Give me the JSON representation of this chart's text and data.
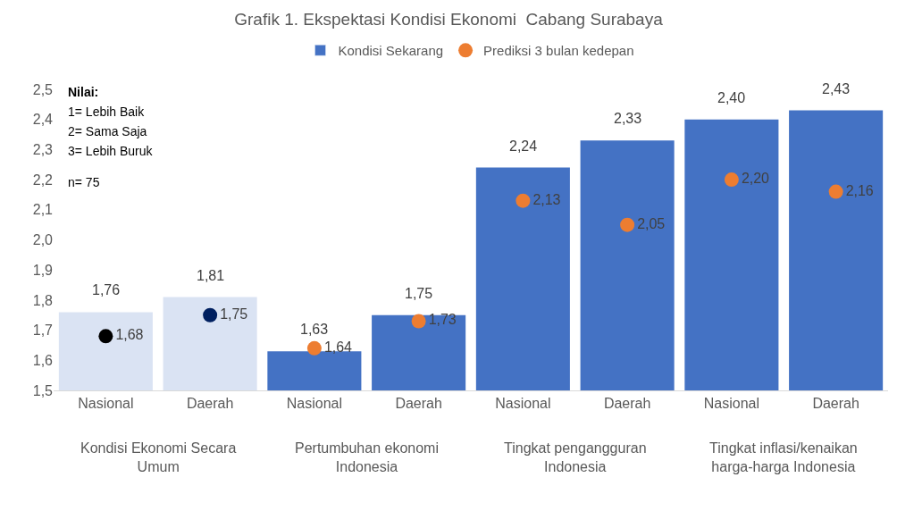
{
  "chart_data": {
    "type": "bar",
    "title": "Grafik 1. Ekspektasi Kondisi Ekonomi  Cabang Surabaya",
    "categories": [
      "Nasional",
      "Daerah",
      "Nasional",
      "Daerah",
      "Nasional",
      "Daerah",
      "Nasional",
      "Daerah"
    ],
    "series": [
      {
        "name": "Kondisi Sekarang",
        "color": "#4472c4",
        "colors": [
          "#dae3f3",
          "#dae3f3",
          "#4472c4",
          "#4472c4",
          "#4472c4",
          "#4472c4",
          "#4472c4",
          "#4472c4"
        ],
        "values": [
          1.76,
          1.81,
          1.63,
          1.75,
          2.24,
          2.33,
          2.4,
          2.43
        ],
        "value_labels": [
          "1,76",
          "1,81",
          "1,63",
          "1,75",
          "2,24",
          "2,33",
          "2,40",
          "2,43"
        ]
      },
      {
        "name": "Prediksi 3 bulan kedepan",
        "type": "scatter",
        "color": "#ed7d31",
        "colors": [
          "#000000",
          "#002060",
          "#ed7d31",
          "#ed7d31",
          "#ed7d31",
          "#ed7d31",
          "#ed7d31",
          "#ed7d31"
        ],
        "values": [
          1.68,
          1.75,
          1.64,
          1.73,
          2.13,
          2.05,
          2.2,
          2.16
        ],
        "value_labels": [
          "1,68",
          "1,75",
          "1,64",
          "1,73",
          "2,13",
          "2,05",
          "2,20",
          "2,16"
        ]
      }
    ],
    "annotations": [
      "Kondisi Ekonomi Secara Umum",
      "Pertumbuhan ekonomi Indonesia",
      "Tingkat pengangguran Indonesia",
      "Tingkat inflasi/kenaikan harga-harga Indonesia",
      "Nilai:",
      "1= Lebih Baik",
      "2= Sama Saja",
      "3= Lebih Buruk",
      "n= 75"
    ],
    "ylim": [
      1.5,
      2.5
    ],
    "yticks": [
      {
        "value": 1.5,
        "label": "1,5"
      },
      {
        "value": 1.6,
        "label": "1,6"
      },
      {
        "value": 1.7,
        "label": "1,7"
      },
      {
        "value": 1.8,
        "label": "1,8"
      },
      {
        "value": 1.9,
        "label": "1,9"
      },
      {
        "value": 2.0,
        "label": "2,0"
      },
      {
        "value": 2.1,
        "label": "2,1"
      },
      {
        "value": 2.2,
        "label": "2,2"
      },
      {
        "value": 2.3,
        "label": "2,3"
      },
      {
        "value": 2.4,
        "label": "2,4"
      },
      {
        "value": 2.5,
        "label": "2,5"
      }
    ],
    "legend": "top",
    "marker": "circle"
  }
}
